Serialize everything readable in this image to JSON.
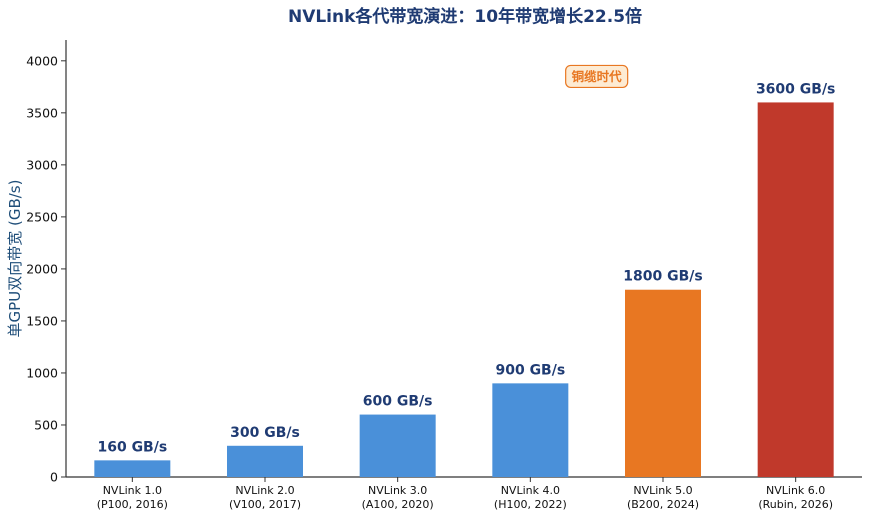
{
  "chart_data": {
    "type": "bar",
    "title": "NVLink各代带宽演进：10年带宽增长22.5倍",
    "xlabel": "",
    "ylabel": "单GPU双向带宽 (GB/s)",
    "ylim": [
      0,
      4200
    ],
    "yticks": [
      0,
      500,
      1000,
      1500,
      2000,
      2500,
      3000,
      3500,
      4000
    ],
    "grid": false,
    "categories": [
      "NVLink 1.0\n(P100, 2016)",
      "NVLink 2.0\n(V100, 2017)",
      "NVLink 3.0\n(A100, 2020)",
      "NVLink 4.0\n(H100, 2022)",
      "NVLink 5.0\n(B200, 2024)",
      "NVLink 6.0\n(Rubin, 2026)"
    ],
    "values": [
      160,
      300,
      600,
      900,
      1800,
      3600
    ],
    "data_labels": [
      "160 GB/s",
      "300 GB/s",
      "600 GB/s",
      "900 GB/s",
      "1800 GB/s",
      "3600 GB/s"
    ],
    "bar_colors": [
      "#4a90d9",
      "#4a90d9",
      "#4a90d9",
      "#4a90d9",
      "#e87722",
      "#c0392b"
    ],
    "title_color": "#1f3b73",
    "ylabel_color": "#1f4e79",
    "data_label_color": "#1f3b73",
    "annotation": {
      "text": "铜缆时代",
      "text_color": "#e87722",
      "box_fill": "#fdebd3",
      "box_stroke": "#e87722",
      "anchor_category_index": 3.5,
      "anchor_value": 3850
    }
  }
}
